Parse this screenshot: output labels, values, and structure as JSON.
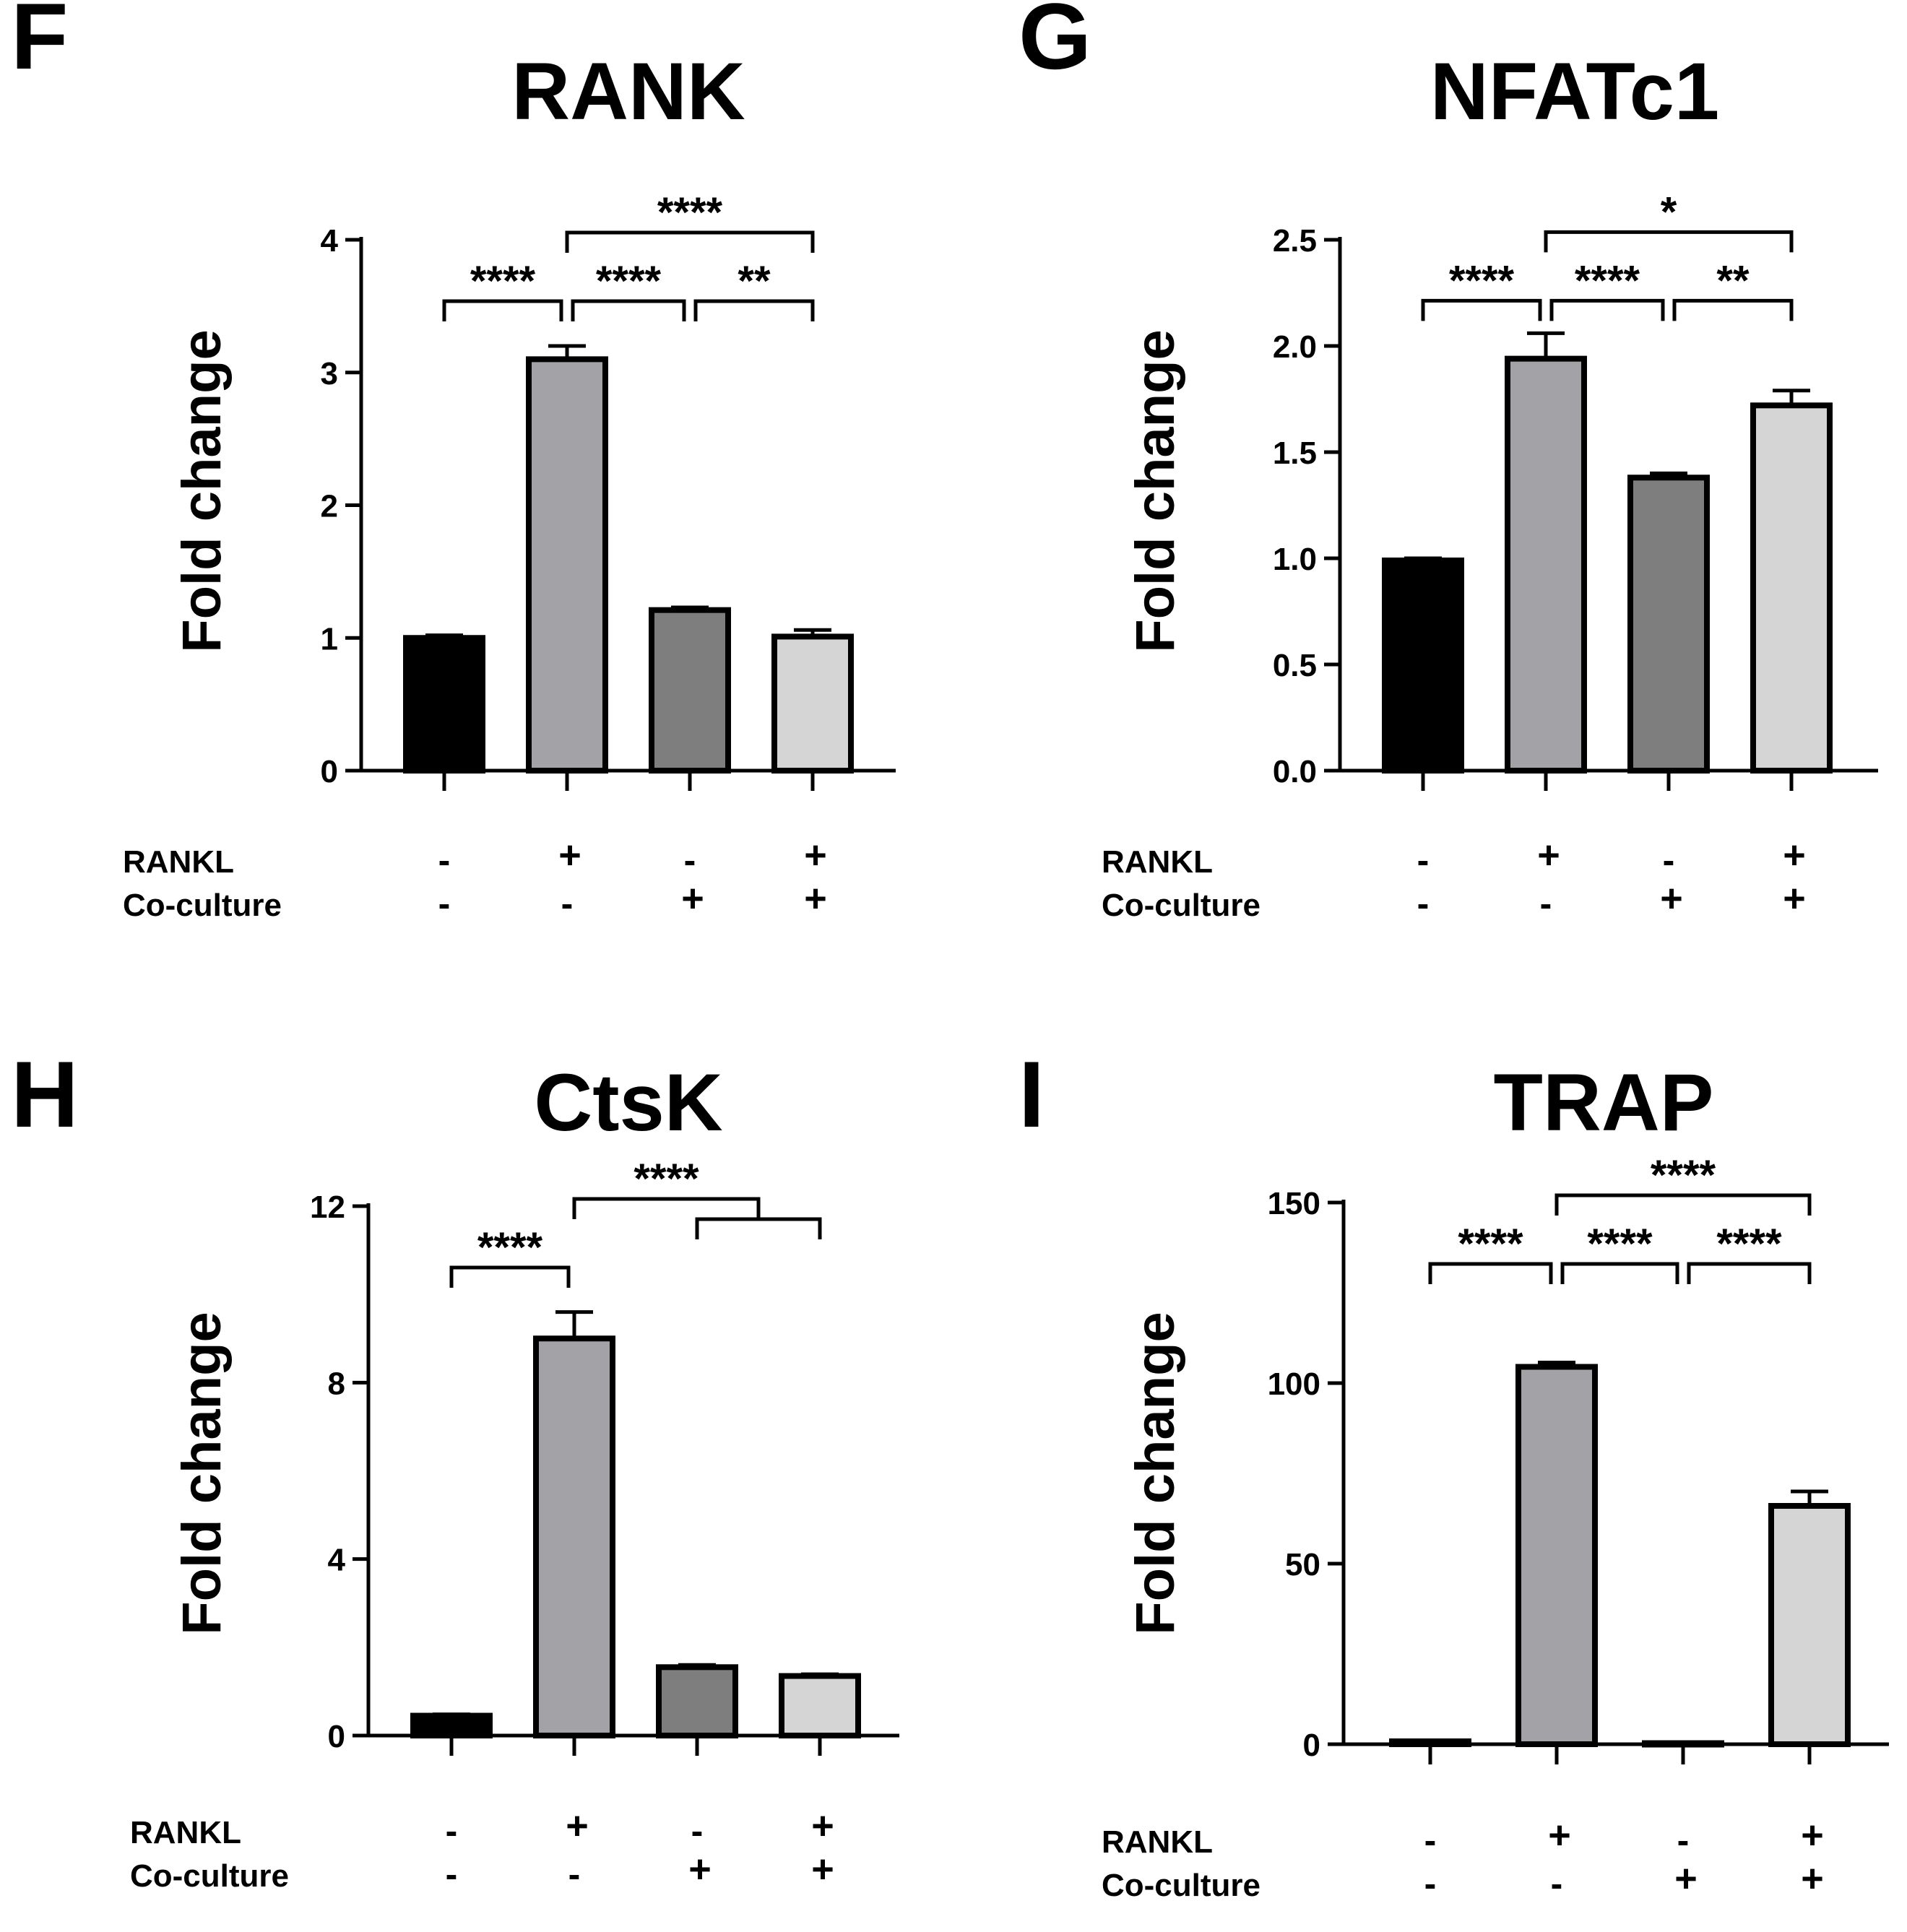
{
  "chart_data": [
    {
      "type": "bar",
      "panel_letter": "F",
      "title": "RANK",
      "ylabel": "Fold change",
      "ylim": [
        0,
        4
      ],
      "yticks": [
        0,
        1,
        2,
        3,
        4
      ],
      "ytick_labels": [
        "0",
        "1",
        "2",
        "3",
        "4"
      ],
      "values": [
        1.0,
        3.1,
        1.21,
        1.01
      ],
      "errors": [
        0.02,
        0.1,
        0.02,
        0.05
      ],
      "bar_colors": [
        "#000000",
        "#a3a3a7",
        "#7e7e7e",
        "#d5d5d5"
      ],
      "condition_labels": [
        "RANKL",
        "Co-culture"
      ],
      "conditions": [
        [
          "-",
          "+",
          "-",
          "+"
        ],
        [
          "-",
          "-",
          "+",
          "+"
        ]
      ],
      "significance": [
        {
          "from": 0,
          "to": 1,
          "label": "****"
        },
        {
          "from": 1,
          "to": 2,
          "label": "****"
        },
        {
          "from": 2,
          "to": 3,
          "label": "**"
        },
        {
          "from": 1,
          "to": 3,
          "label": "****"
        }
      ]
    },
    {
      "type": "bar",
      "panel_letter": "G",
      "title": "NFATc1",
      "ylabel": "Fold change",
      "ylim": [
        0,
        2.5
      ],
      "yticks": [
        0,
        0.5,
        1.0,
        1.5,
        2.0,
        2.5
      ],
      "ytick_labels": [
        "0.0",
        "0.5",
        "1.0",
        "1.5",
        "2.0",
        "2.5"
      ],
      "values": [
        0.99,
        1.94,
        1.38,
        1.72
      ],
      "errors": [
        0.01,
        0.12,
        0.02,
        0.07
      ],
      "bar_colors": [
        "#000000",
        "#a3a3a7",
        "#7e7e7e",
        "#d5d5d5"
      ],
      "condition_labels": [
        "RANKL",
        "Co-culture"
      ],
      "conditions": [
        [
          "-",
          "+",
          "-",
          "+"
        ],
        [
          "-",
          "-",
          "+",
          "+"
        ]
      ],
      "significance": [
        {
          "from": 0,
          "to": 1,
          "label": "****"
        },
        {
          "from": 1,
          "to": 2,
          "label": "****"
        },
        {
          "from": 2,
          "to": 3,
          "label": "**"
        },
        {
          "from": 1,
          "to": 3,
          "label": "*"
        }
      ]
    },
    {
      "type": "bar",
      "panel_letter": "H",
      "title": "CtsK",
      "ylabel": "Fold change",
      "ylim": [
        0,
        12
      ],
      "yticks": [
        0,
        4,
        8,
        12
      ],
      "ytick_labels": [
        "0",
        "4",
        "8",
        "12"
      ],
      "values": [
        0.45,
        9.0,
        1.55,
        1.35
      ],
      "errors": [
        0.03,
        0.6,
        0.05,
        0.04
      ],
      "bar_colors": [
        "#000000",
        "#a3a3a7",
        "#7e7e7e",
        "#d5d5d5"
      ],
      "condition_labels": [
        "RANKL",
        "Co-culture"
      ],
      "conditions": [
        [
          "-",
          "+",
          "-",
          "+"
        ],
        [
          "-",
          "-",
          "+",
          "+"
        ]
      ],
      "significance": [
        {
          "from": 0,
          "to": 1,
          "label": "****"
        },
        {
          "from": 1,
          "to": 2.5,
          "label": "****",
          "nested_to": [
            2,
            3
          ]
        }
      ]
    },
    {
      "type": "bar",
      "panel_letter": "I",
      "title": "TRAP",
      "ylabel": "Fold change",
      "ylim": [
        0,
        150
      ],
      "yticks": [
        0,
        50,
        100,
        150
      ],
      "ytick_labels": [
        "0",
        "50",
        "100",
        "150"
      ],
      "values": [
        0.8,
        104.5,
        0.3,
        66.0
      ],
      "errors": [
        0.1,
        1.2,
        0.05,
        4.0
      ],
      "bar_colors": [
        "#000000",
        "#a3a3a7",
        "#7e7e7e",
        "#d5d5d5"
      ],
      "condition_labels": [
        "RANKL",
        "Co-culture"
      ],
      "conditions": [
        [
          "-",
          "+",
          "-",
          "+"
        ],
        [
          "-",
          "-",
          "+",
          "+"
        ]
      ],
      "significance": [
        {
          "from": 0,
          "to": 1,
          "label": "****"
        },
        {
          "from": 1,
          "to": 2,
          "label": "****"
        },
        {
          "from": 2,
          "to": 3,
          "label": "****"
        },
        {
          "from": 1,
          "to": 3,
          "label": "****"
        }
      ]
    }
  ]
}
